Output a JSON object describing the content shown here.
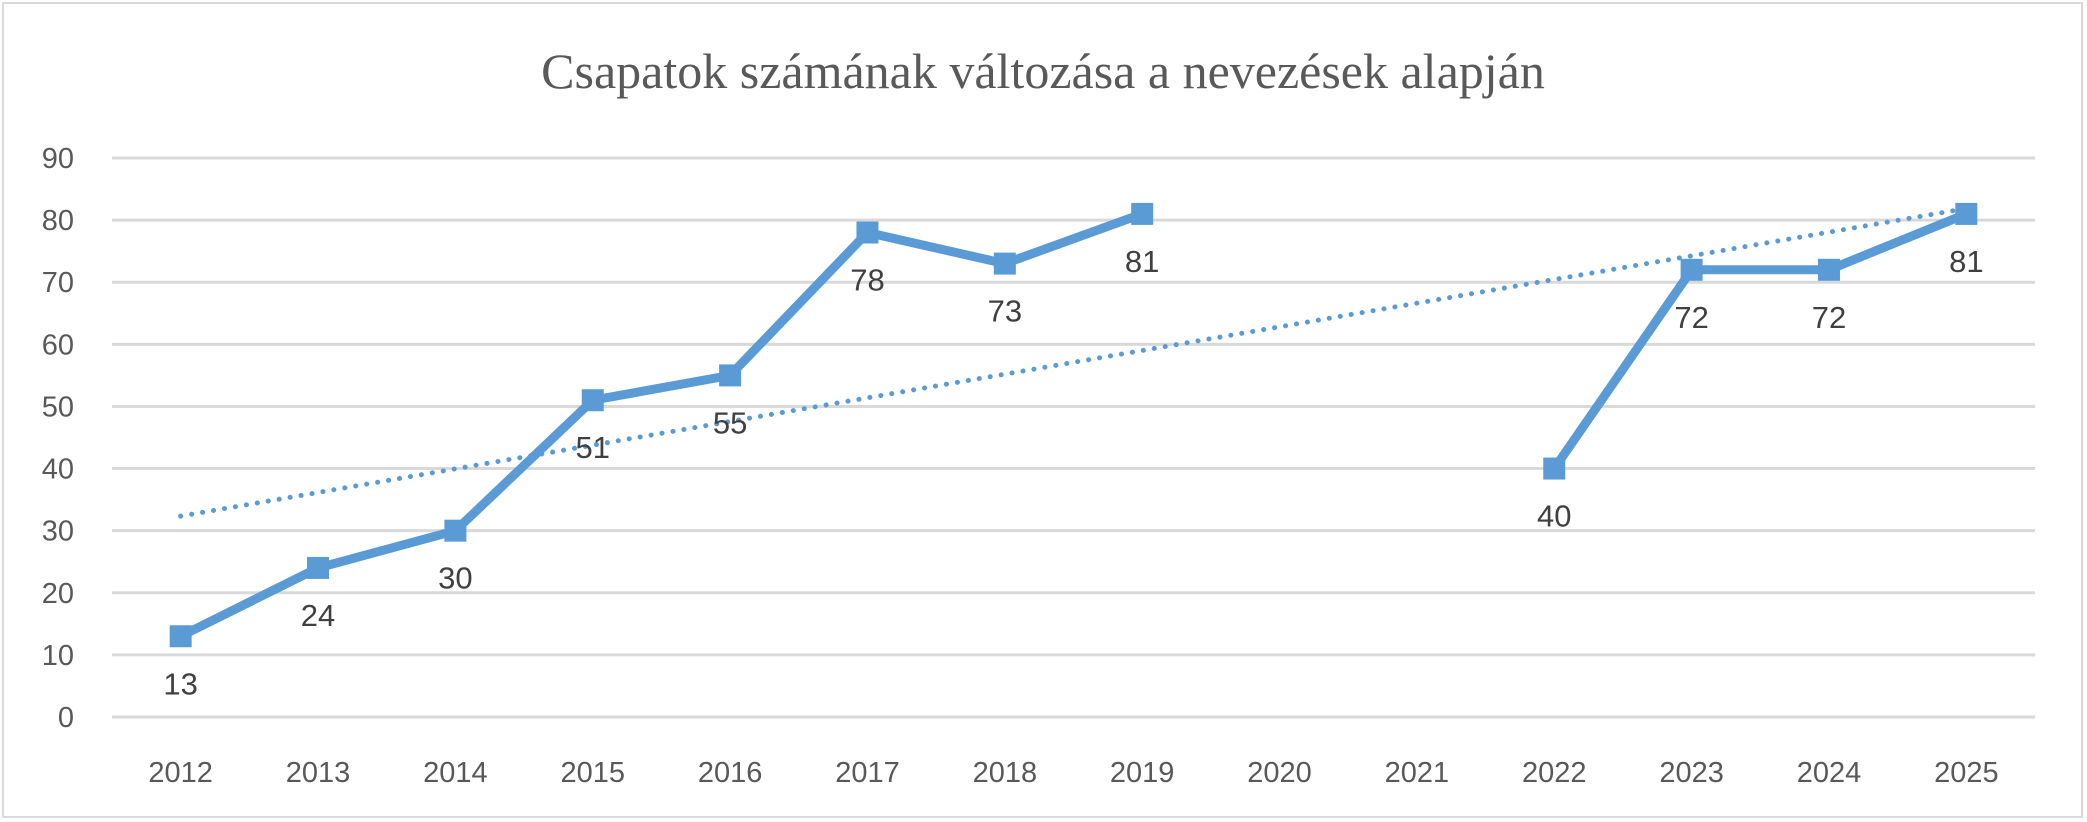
{
  "chart_data": {
    "type": "line",
    "title": "Csapatok számának változása a nevezések alapján",
    "xlabel": "",
    "ylabel": "",
    "categories": [
      "2012",
      "2013",
      "2014",
      "2015",
      "2016",
      "2017",
      "2018",
      "2019",
      "2020",
      "2021",
      "2022",
      "2023",
      "2024",
      "2025"
    ],
    "series": [
      {
        "values": [
          13,
          24,
          30,
          51,
          55,
          78,
          73,
          81,
          null,
          null,
          40,
          72,
          72,
          81
        ],
        "color": "#5B9BD5",
        "marker": "square",
        "data_labels": "below"
      }
    ],
    "trendline": {
      "type": "linear",
      "style": "dotted",
      "color": "#5B9BD5"
    },
    "ylim": [
      0,
      90
    ],
    "yticks": [
      0,
      10,
      20,
      30,
      40,
      50,
      60,
      70,
      80,
      90
    ],
    "grid": true,
    "legend": "none",
    "colors": {
      "grid": "#D9D9D9",
      "text": "#595959",
      "border": "#D9D9D9"
    }
  }
}
